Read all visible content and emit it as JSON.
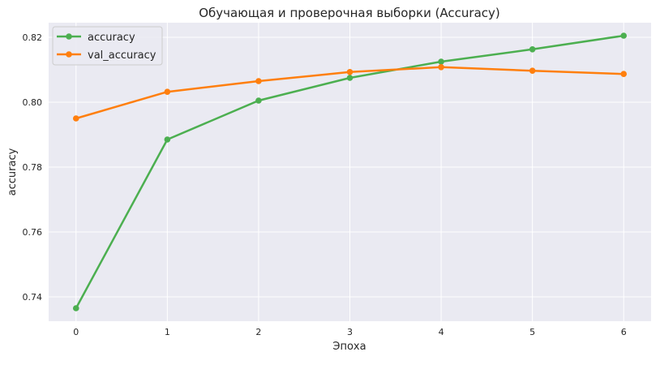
{
  "chart_data": {
    "type": "line",
    "title": "Обучающая и проверочная выборки (Accuracy)",
    "xlabel": "Эпоха",
    "ylabel": "accuracy",
    "x": [
      0,
      1,
      2,
      3,
      4,
      5,
      6
    ],
    "x_ticks": [
      "0",
      "1",
      "2",
      "3",
      "4",
      "5",
      "6"
    ],
    "y_ticks": [
      "0.74",
      "0.76",
      "0.78",
      "0.80",
      "0.82"
    ],
    "xlim": [
      -0.3,
      6.3
    ],
    "ylim": [
      0.7325,
      0.8245
    ],
    "grid": true,
    "legend_position": "top-left",
    "series": [
      {
        "name": "accuracy",
        "color": "#4caf50",
        "values": [
          0.7365,
          0.7885,
          0.8005,
          0.8075,
          0.8125,
          0.8163,
          0.8205
        ]
      },
      {
        "name": "val_accuracy",
        "color": "#ff7f0e",
        "values": [
          0.795,
          0.8032,
          0.8065,
          0.8093,
          0.8108,
          0.8097,
          0.8087
        ]
      }
    ],
    "colors": {
      "plot_background": "#eaeaf2",
      "grid": "#ffffff",
      "text": "#262626"
    }
  }
}
